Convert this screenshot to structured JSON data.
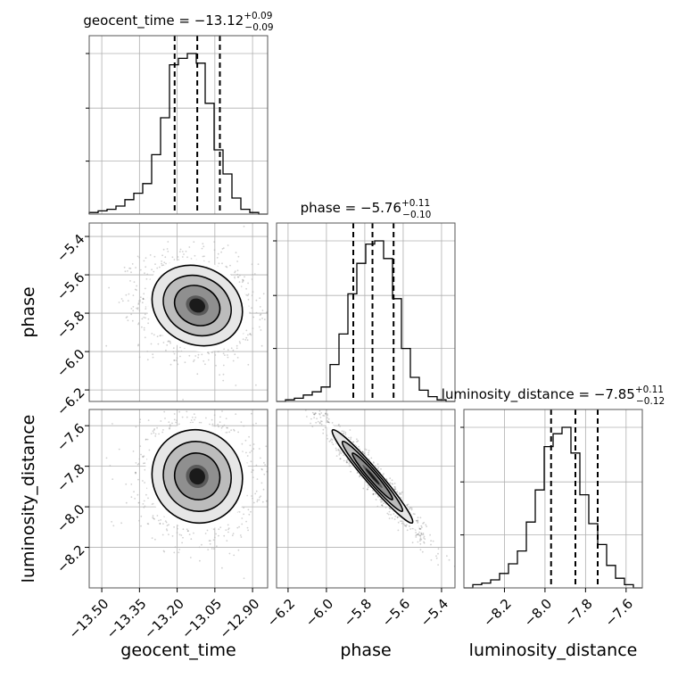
{
  "chart_data": {
    "type": "corner",
    "parameters": [
      "geocent_time",
      "phase",
      "luminosity_distance"
    ],
    "axis_labels": [
      "geocent_time",
      "phase",
      "luminosity_distance"
    ],
    "grid": true,
    "ranges": [
      [
        -13.55,
        -12.84
      ],
      [
        -6.26,
        -5.33
      ],
      [
        -8.4,
        -7.52
      ]
    ],
    "ticks": [
      [
        "−13.50",
        "−13.35",
        "−13.20",
        "−13.05",
        "−12.90"
      ],
      [
        "−6.2",
        "−6.0",
        "−5.8",
        "−5.6",
        "−5.4"
      ],
      [
        "−8.2",
        "−8.0",
        "−7.8",
        "−7.6"
      ]
    ],
    "tick_values": [
      [
        -13.5,
        -13.35,
        -13.2,
        -13.05,
        -12.9
      ],
      [
        -6.2,
        -6.0,
        -5.8,
        -5.6,
        -5.4
      ],
      [
        -8.2,
        -8.0,
        -7.8,
        -7.6
      ]
    ],
    "titles": [
      {
        "name": "geocent_time",
        "median": "−13.12",
        "plus": "+0.09",
        "minus": "−0.09"
      },
      {
        "name": "phase",
        "median": "−5.76",
        "plus": "+0.11",
        "minus": "−0.10"
      },
      {
        "name": "luminosity_distance",
        "median": "−7.85",
        "plus": "+0.11",
        "minus": "−0.12"
      }
    ],
    "quantiles": [
      [
        -13.21,
        -13.12,
        -13.03
      ],
      [
        -5.86,
        -5.76,
        -5.65
      ],
      [
        -7.97,
        -7.85,
        -7.74
      ]
    ],
    "histograms": [
      {
        "counts": [
          0.01,
          0.02,
          0.03,
          0.05,
          0.09,
          0.13,
          0.19,
          0.37,
          0.6,
          0.93,
          0.97,
          1.0,
          0.94,
          0.69,
          0.4,
          0.25,
          0.1,
          0.03,
          0.01,
          0.0
        ]
      },
      {
        "counts": [
          0.0,
          0.01,
          0.02,
          0.04,
          0.06,
          0.09,
          0.23,
          0.42,
          0.67,
          0.86,
          0.98,
          1.0,
          0.89,
          0.64,
          0.33,
          0.15,
          0.07,
          0.03,
          0.01,
          0.0
        ]
      },
      {
        "counts": [
          0.0,
          0.02,
          0.03,
          0.05,
          0.09,
          0.15,
          0.23,
          0.41,
          0.61,
          0.88,
          0.96,
          1.0,
          0.84,
          0.58,
          0.4,
          0.27,
          0.14,
          0.06,
          0.02,
          0.0
        ]
      }
    ],
    "correlations": {
      "phase_vs_geocent_time": -0.15,
      "luminosity_distance_vs_geocent_time": -0.05,
      "luminosity_distance_vs_phase": -0.97
    },
    "contour_levels": [
      0.5,
      1.0,
      1.5,
      2.0
    ]
  }
}
